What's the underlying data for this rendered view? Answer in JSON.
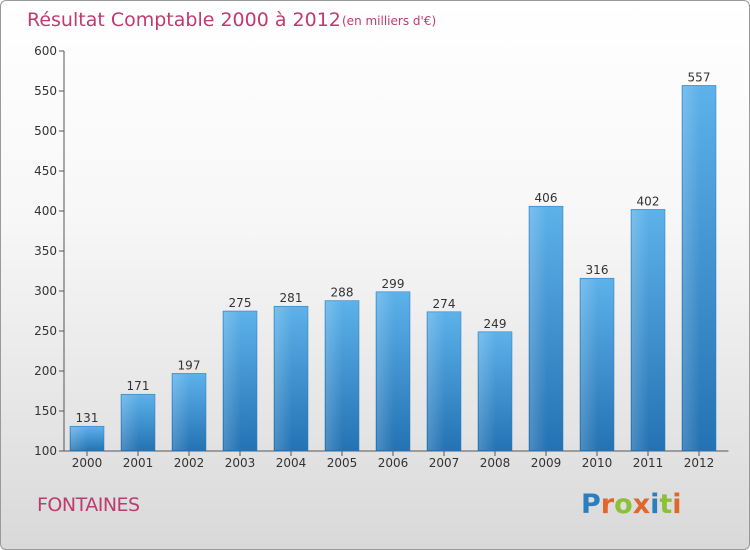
{
  "header": {
    "title": "Résultat Comptable 2000 à 2012",
    "subtitle": "(en milliers d'€)"
  },
  "commune": "FONTAINES",
  "logo": {
    "text": "Proxiti",
    "letter_colors": [
      "#2a7fc0",
      "#e0662a",
      "#8cbf3a",
      "#e0662a",
      "#2a7fc0",
      "#8cbf3a",
      "#e0662a"
    ]
  },
  "chart_data": {
    "type": "bar",
    "title": "Résultat Comptable 2000 à 2012",
    "xlabel": "",
    "ylabel": "",
    "categories": [
      "2000",
      "2001",
      "2002",
      "2003",
      "2004",
      "2005",
      "2006",
      "2007",
      "2008",
      "2009",
      "2010",
      "2011",
      "2012"
    ],
    "values": [
      131,
      171,
      197,
      275,
      281,
      288,
      299,
      274,
      249,
      406,
      316,
      402,
      557
    ],
    "ylim": [
      100,
      600
    ],
    "yticks": [
      100,
      150,
      200,
      250,
      300,
      350,
      400,
      450,
      500,
      550,
      600
    ],
    "grid": false,
    "bar_color": "#3f9ee0"
  }
}
